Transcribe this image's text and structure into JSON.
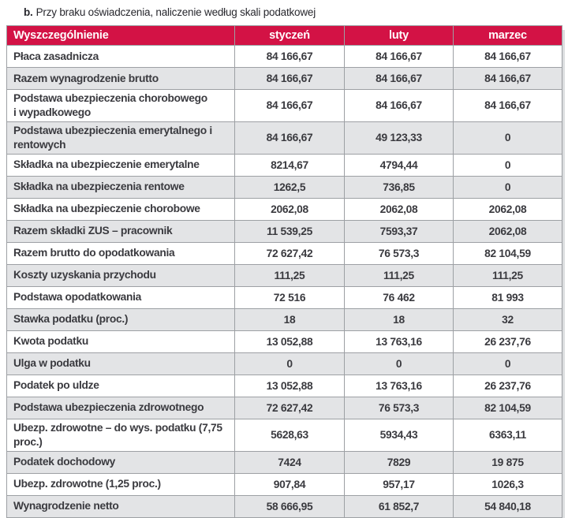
{
  "title": {
    "prefix": "b.",
    "text": "Przy braku oświadczenia, naliczenie według skali podatkowej"
  },
  "colors": {
    "header_bg": "#d31245",
    "header_text": "#ffffff",
    "header_underline": "#2e2b36",
    "row_alt_bg": "#e3e4e6",
    "border": "#9da0a4",
    "body_text": "#3a3a3f",
    "shadow": "#dcdee0"
  },
  "table": {
    "columns": [
      "Wyszczególnienie",
      "styczeń",
      "luty",
      "marzec"
    ],
    "rows": [
      {
        "label": "Płaca zasadnicza",
        "values": [
          "84 166,67",
          "84 166,67",
          "84 166,67"
        ]
      },
      {
        "label": "Razem wynagrodzenie brutto",
        "values": [
          "84 166,67",
          "84 166,67",
          "84 166,67"
        ]
      },
      {
        "label": "Podstawa ubezpieczenia chorobowego\ni wypadkowego",
        "values": [
          "84 166,67",
          "84 166,67",
          "84 166,67"
        ]
      },
      {
        "label": "Podstawa ubezpieczenia emerytalnego i rentowych",
        "values": [
          "84 166,67",
          "49 123,33",
          "0"
        ]
      },
      {
        "label": "Składka na ubezpieczenie emerytalne",
        "values": [
          "8214,67",
          "4794,44",
          "0"
        ]
      },
      {
        "label": "Składka na ubezpieczenia rentowe",
        "values": [
          "1262,5",
          "736,85",
          "0"
        ]
      },
      {
        "label": "Składka na ubezpieczenie chorobowe",
        "values": [
          "2062,08",
          "2062,08",
          "2062,08"
        ]
      },
      {
        "label": "Razem składki ZUS – pracownik",
        "values": [
          "11 539,25",
          "7593,37",
          "2062,08"
        ]
      },
      {
        "label": "Razem brutto do opodatkowania",
        "values": [
          "72 627,42",
          "76 573,3",
          "82 104,59"
        ]
      },
      {
        "label": "Koszty uzyskania przychodu",
        "values": [
          "111,25",
          "111,25",
          "111,25"
        ]
      },
      {
        "label": "Podstawa opodatkowania",
        "values": [
          "72 516",
          "76 462",
          "81 993"
        ]
      },
      {
        "label": "Stawka podatku (proc.)",
        "values": [
          "18",
          "18",
          "32"
        ]
      },
      {
        "label": "Kwota podatku",
        "values": [
          "13 052,88",
          "13 763,16",
          "26 237,76"
        ]
      },
      {
        "label": "Ulga w podatku",
        "values": [
          "0",
          "0",
          "0"
        ]
      },
      {
        "label": "Podatek po uldze",
        "values": [
          "13 052,88",
          "13 763,16",
          "26 237,76"
        ]
      },
      {
        "label": "Podstawa ubezpieczenia zdrowotnego",
        "values": [
          "72 627,42",
          "76 573,3",
          "82 104,59"
        ]
      },
      {
        "label": "Ubezp. zdrowotne – do wys. podatku (7,75 proc.)",
        "values": [
          "5628,63",
          "5934,43",
          "6363,11"
        ]
      },
      {
        "label": "Podatek dochodowy",
        "values": [
          "7424",
          "7829",
          "19 875"
        ]
      },
      {
        "label": "Ubezp. zdrowotne (1,25 proc.)",
        "values": [
          "907,84",
          "957,17",
          "1026,3"
        ]
      },
      {
        "label": "Wynagrodzenie netto",
        "values": [
          "58 666,95",
          "61 852,7",
          "54 840,18"
        ]
      }
    ]
  }
}
